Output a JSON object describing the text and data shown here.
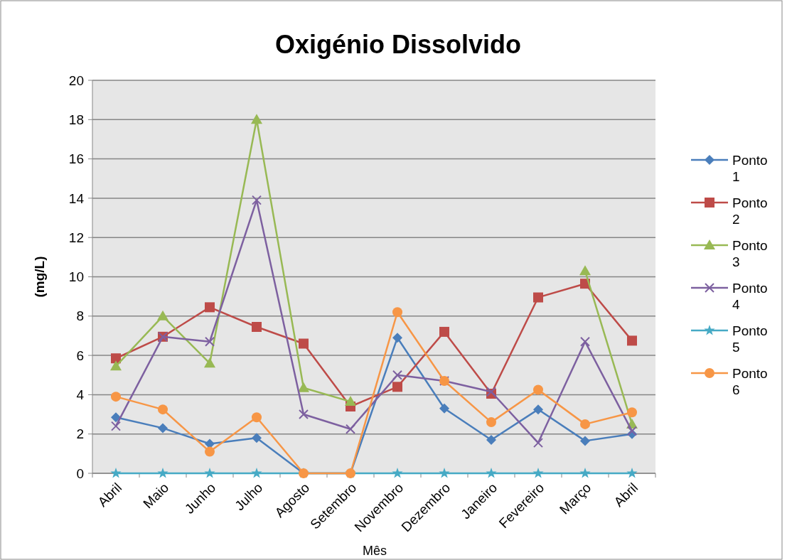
{
  "chart_data": {
    "type": "line",
    "title": "Oxigénio Dissolvido",
    "xlabel": "Mês",
    "ylabel": "(mg/L)",
    "categories": [
      "Abril",
      "Maio",
      "Junho",
      "Julho",
      "Agosto",
      "Setembro",
      "Novembro",
      "Dezembro",
      "Janeiro",
      "Fevereiro",
      "Março",
      "Abril"
    ],
    "ylim": [
      0,
      20
    ],
    "yticks": [
      0,
      2,
      4,
      6,
      8,
      10,
      12,
      14,
      16,
      18,
      20
    ],
    "grid": "y",
    "legend": "right",
    "series": [
      {
        "name": "Ponto 1",
        "color": "#4a7ebb",
        "marker": "diamond",
        "values": [
          2.85,
          2.3,
          1.5,
          1.8,
          0,
          0,
          6.9,
          3.3,
          1.7,
          3.25,
          1.65,
          2.0
        ]
      },
      {
        "name": "Ponto 2",
        "color": "#be4b48",
        "marker": "square",
        "values": [
          5.85,
          6.95,
          8.45,
          7.45,
          6.6,
          3.4,
          4.4,
          7.2,
          4.05,
          8.95,
          9.65,
          6.75
        ]
      },
      {
        "name": "Ponto 3",
        "color": "#98b954",
        "marker": "triangle",
        "values": [
          5.45,
          8.0,
          5.6,
          18.0,
          4.35,
          3.65,
          null,
          null,
          null,
          null,
          10.3,
          2.5
        ]
      },
      {
        "name": "Ponto 4",
        "color": "#7d60a0",
        "marker": "cross",
        "values": [
          2.4,
          6.95,
          6.7,
          13.9,
          3.0,
          2.25,
          5.0,
          4.7,
          4.15,
          1.55,
          6.7,
          2.15
        ]
      },
      {
        "name": "Ponto 5",
        "color": "#46aac5",
        "marker": "star",
        "values": [
          0,
          0,
          0,
          0,
          0,
          0,
          0,
          0,
          0,
          0,
          0,
          0
        ]
      },
      {
        "name": "Ponto 6",
        "color": "#f79646",
        "marker": "circle",
        "values": [
          3.9,
          3.25,
          1.1,
          2.85,
          0,
          0,
          8.2,
          4.7,
          2.6,
          4.25,
          2.5,
          3.1
        ]
      }
    ]
  }
}
